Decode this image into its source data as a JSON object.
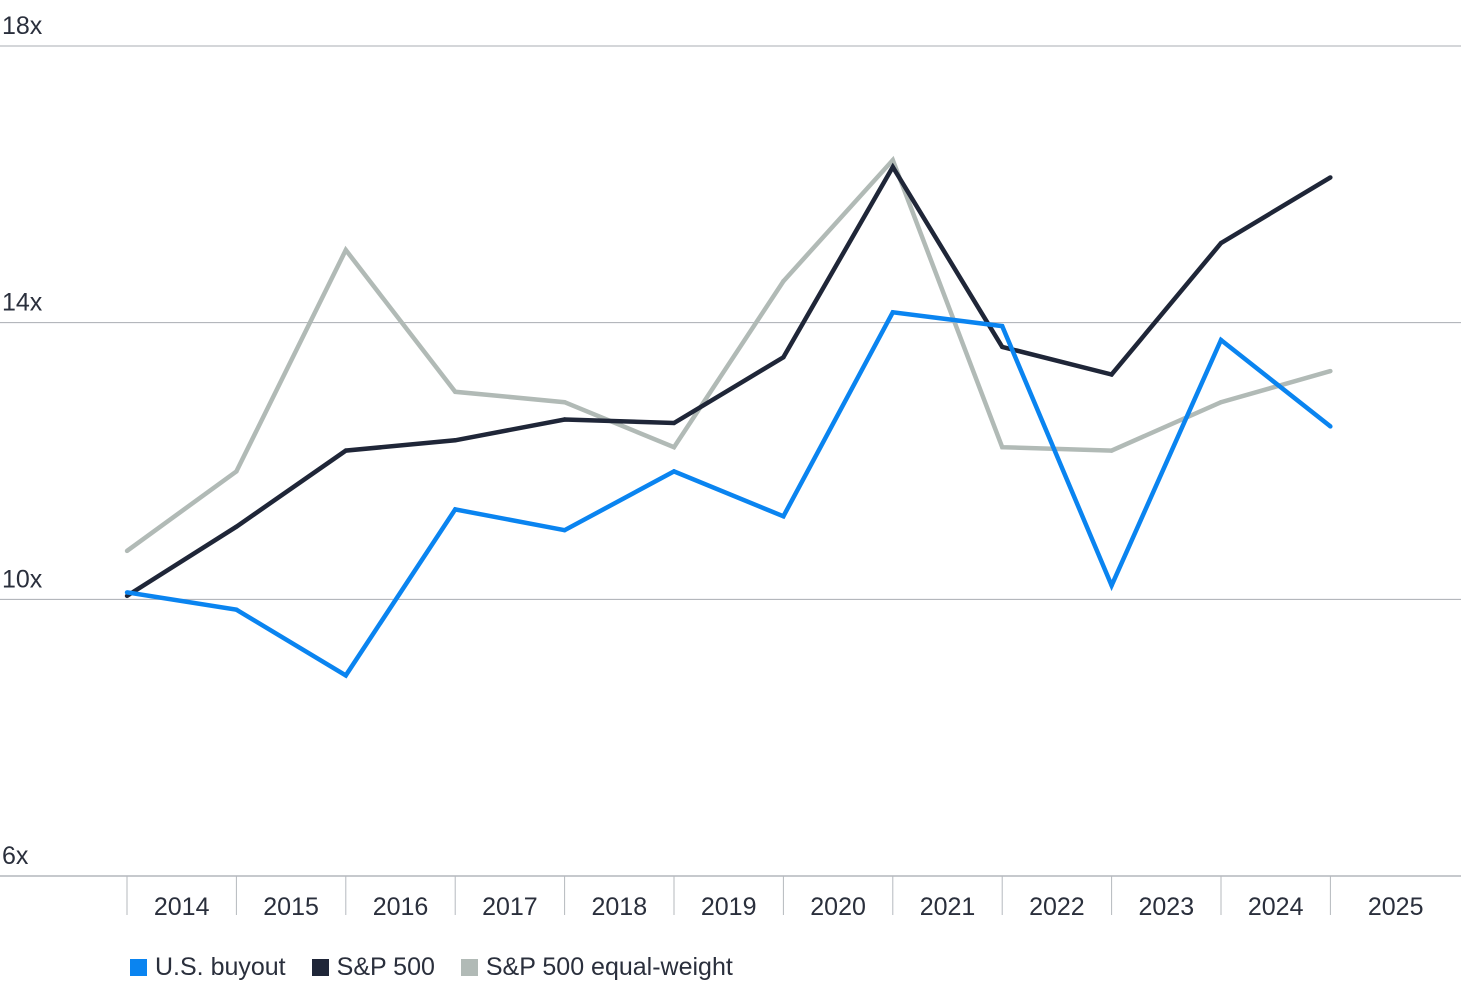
{
  "chart_data": {
    "type": "line",
    "categories": [
      "2014",
      "2015",
      "2016",
      "2017",
      "2018",
      "2019",
      "2020",
      "2021",
      "2022",
      "2023",
      "2024",
      "2025"
    ],
    "y_ticks": [
      "6x",
      "10x",
      "14x",
      "18x"
    ],
    "ylim": [
      6,
      18
    ],
    "grid": true,
    "legend_position": "bottom-left",
    "series": [
      {
        "name": "U.S. buyout",
        "color": "#0a84f0",
        "values": [
          10.1,
          9.85,
          8.9,
          11.3,
          11.0,
          11.85,
          11.2,
          14.15,
          13.95,
          10.2,
          13.75,
          12.5
        ]
      },
      {
        "name": "S&P 500",
        "color": "#1f2638",
        "values": [
          10.05,
          11.05,
          12.15,
          12.3,
          12.6,
          12.55,
          13.5,
          16.25,
          13.65,
          13.25,
          15.15,
          16.1
        ]
      },
      {
        "name": "S&P 500 equal-weight",
        "color": "#b1bab6",
        "values": [
          10.7,
          11.85,
          15.05,
          13.0,
          12.85,
          12.2,
          14.6,
          16.35,
          12.2,
          12.15,
          12.85,
          13.3
        ]
      }
    ]
  }
}
